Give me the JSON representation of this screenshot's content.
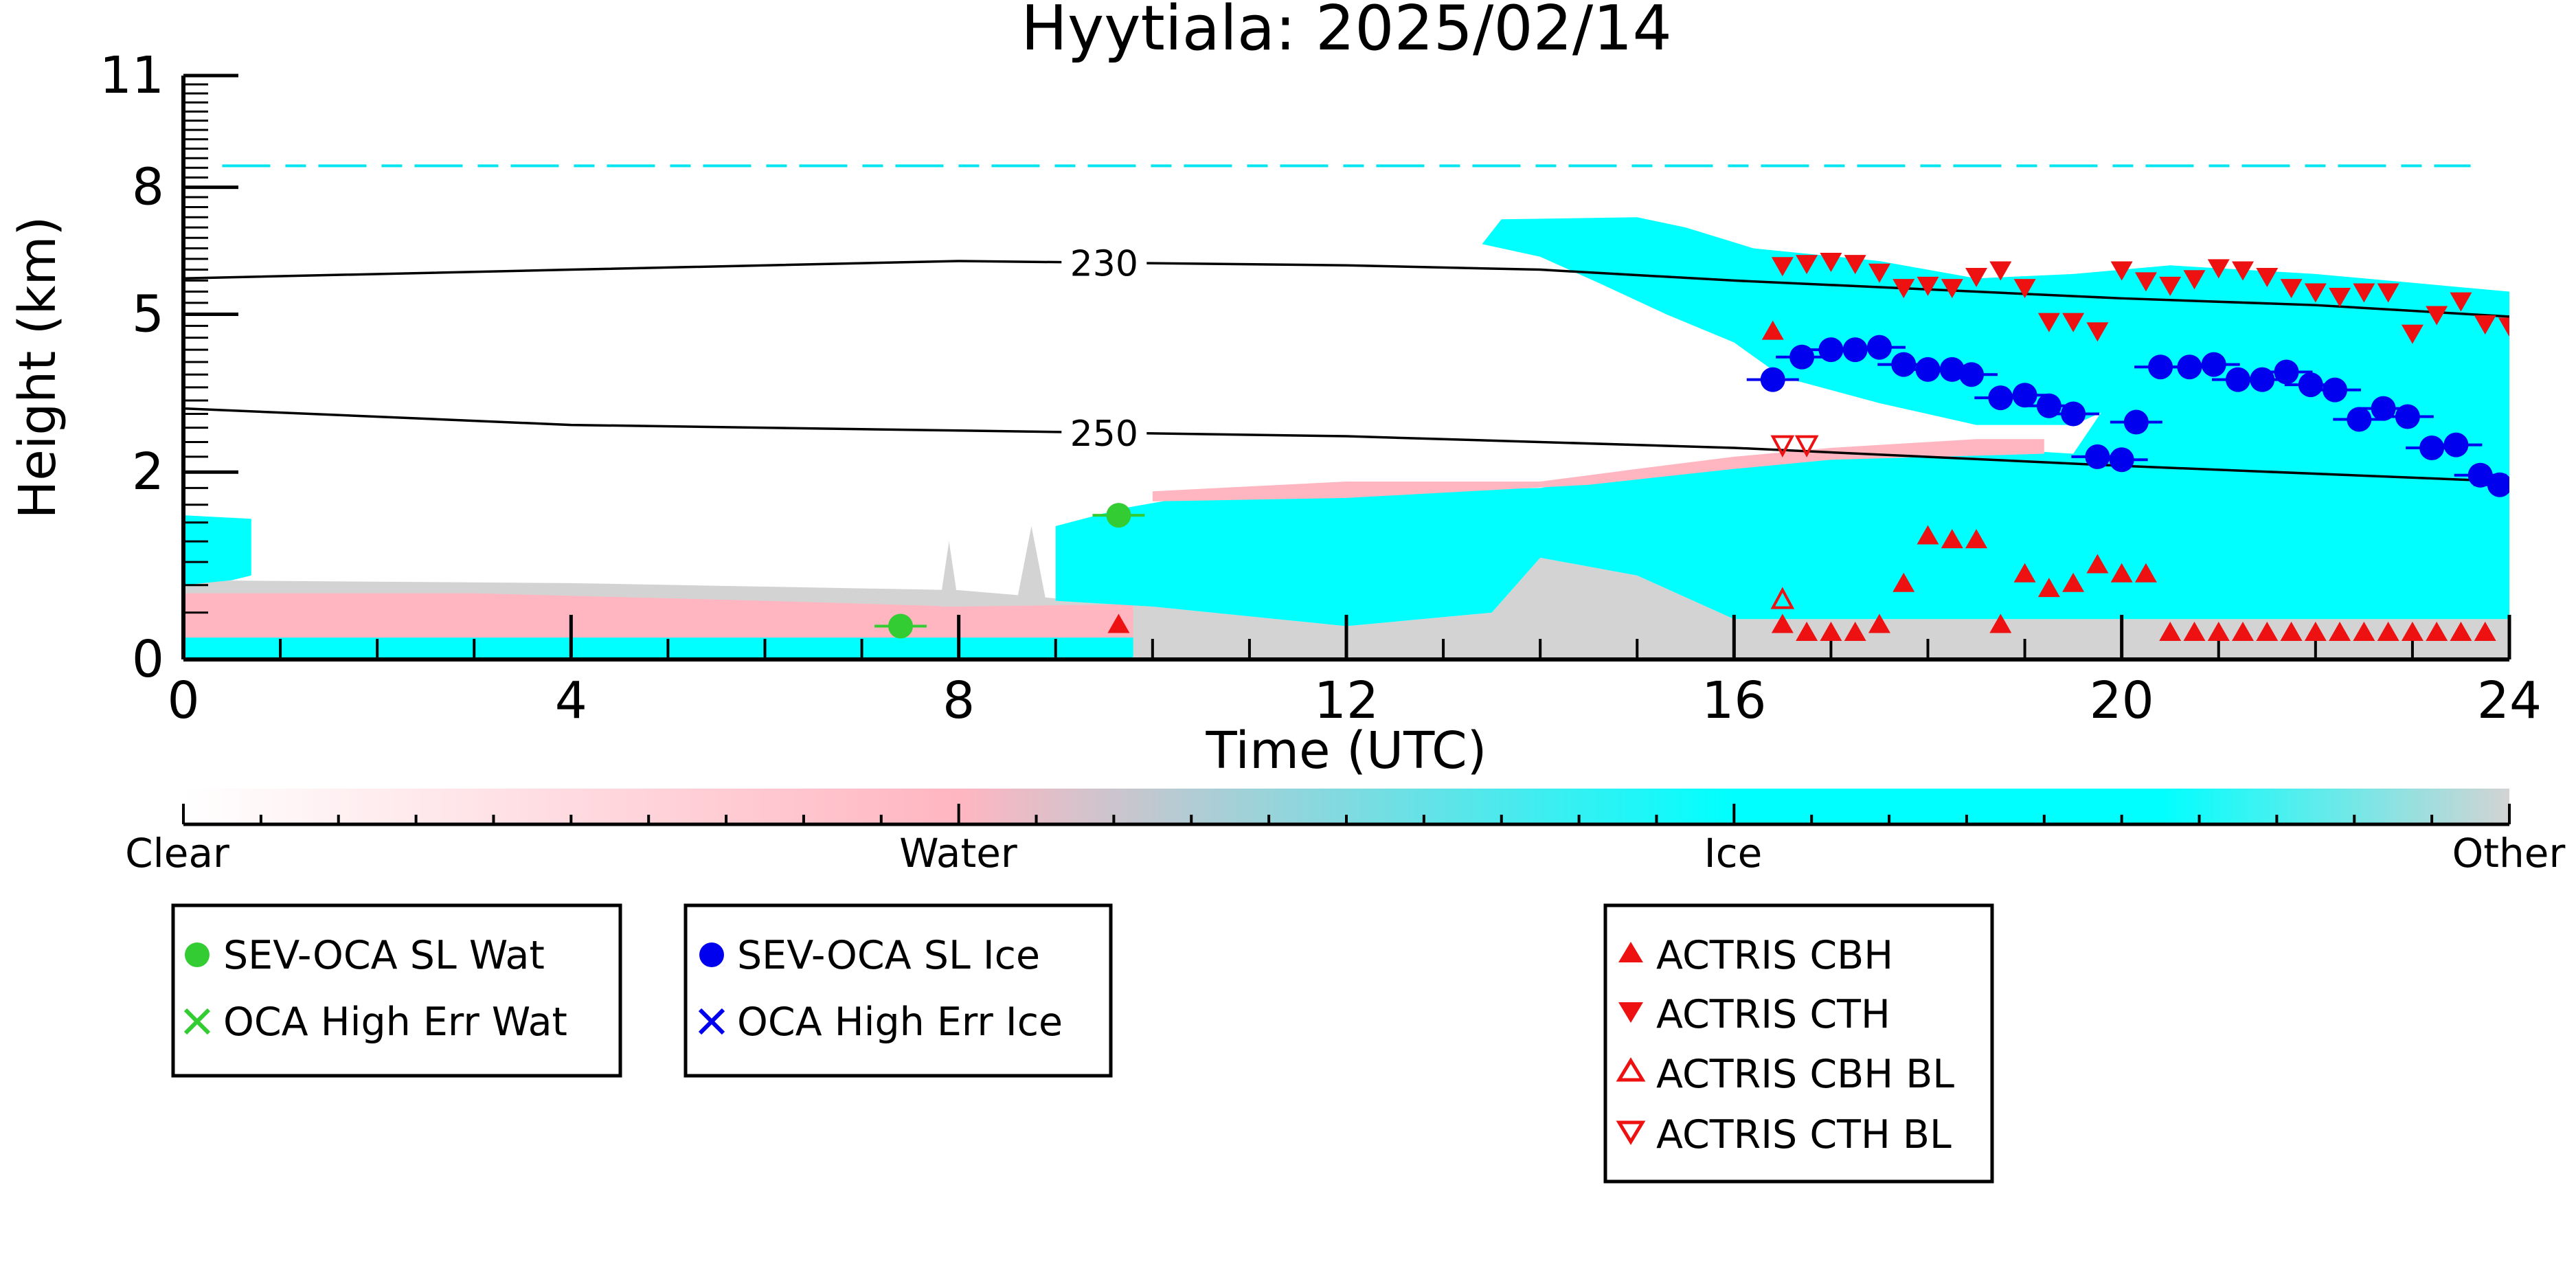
{
  "chart_data": {
    "type": "scatter",
    "title": "Hyytiala: 2025/02/14",
    "xlabel": "Time (UTC)",
    "ylabel": "Height (km)",
    "xlim": [
      0,
      24
    ],
    "ylim": [
      0,
      11
    ],
    "y_axis_scale": "power 2/3 (non-linear)",
    "x_ticks": [
      "0",
      "4",
      "8",
      "12",
      "16",
      "20",
      "24"
    ],
    "y_ticks": [
      {
        "value": 0,
        "label": "0"
      },
      {
        "value": 2,
        "label": "2"
      },
      {
        "value": 5,
        "label": "5"
      },
      {
        "value": 8,
        "label": "8"
      },
      {
        "value": 11,
        "label": "11"
      }
    ],
    "temperature_contours": [
      {
        "label": "230",
        "label_x": 9.5,
        "points": [
          [
            0,
            5.8
          ],
          [
            4,
            6.0
          ],
          [
            8,
            6.2
          ],
          [
            12,
            6.1
          ],
          [
            14,
            6.0
          ],
          [
            16,
            5.75
          ],
          [
            18,
            5.55
          ],
          [
            20,
            5.35
          ],
          [
            22,
            5.2
          ],
          [
            24,
            4.95
          ]
        ]
      },
      {
        "label": "250",
        "label_x": 9.5,
        "points": [
          [
            0,
            3.1
          ],
          [
            4,
            2.8
          ],
          [
            8,
            2.7
          ],
          [
            12,
            2.6
          ],
          [
            16,
            2.4
          ],
          [
            20,
            2.1
          ],
          [
            24,
            1.85
          ]
        ]
      }
    ],
    "classification_colorbar": {
      "labels": [
        "Clear",
        "Water",
        "Ice",
        "Other"
      ],
      "colors": [
        "#ffffff",
        "#ffb6c1",
        "#00ffff",
        "#d3d3d3"
      ]
    },
    "series": [
      {
        "name": "SEV-OCA SL Wat",
        "marker": "circle",
        "color": "#33cc33",
        "points": [
          [
            7.4,
            0.15
          ],
          [
            9.65,
            1.35
          ]
        ]
      },
      {
        "name": "OCA High Err Wat",
        "marker": "x",
        "color": "#33cc33",
        "points": []
      },
      {
        "name": "SEV-OCA SL Ice",
        "marker": "circle",
        "color": "#0000ee",
        "points": [
          [
            16.4,
            3.65
          ],
          [
            16.7,
            4.1
          ],
          [
            17.0,
            4.25
          ],
          [
            17.25,
            4.25
          ],
          [
            17.5,
            4.3
          ],
          [
            17.75,
            3.95
          ],
          [
            18.0,
            3.85
          ],
          [
            18.25,
            3.85
          ],
          [
            18.45,
            3.75
          ],
          [
            18.75,
            3.3
          ],
          [
            19.0,
            3.35
          ],
          [
            19.25,
            3.15
          ],
          [
            19.5,
            3.0
          ],
          [
            19.75,
            2.25
          ],
          [
            20.0,
            2.2
          ],
          [
            20.15,
            2.85
          ],
          [
            20.4,
            3.9
          ],
          [
            20.7,
            3.9
          ],
          [
            20.95,
            3.95
          ],
          [
            21.2,
            3.65
          ],
          [
            21.45,
            3.65
          ],
          [
            21.7,
            3.8
          ],
          [
            21.95,
            3.55
          ],
          [
            22.2,
            3.45
          ],
          [
            22.45,
            2.9
          ],
          [
            22.7,
            3.1
          ],
          [
            22.95,
            2.95
          ],
          [
            23.2,
            2.4
          ],
          [
            23.45,
            2.45
          ],
          [
            23.7,
            1.95
          ],
          [
            23.9,
            1.8
          ]
        ]
      },
      {
        "name": "OCA High Err Ice",
        "marker": "x",
        "color": "#0000ee",
        "points": []
      },
      {
        "name": "ACTRIS CBH",
        "marker": "triangle-up",
        "color": "#ee1111",
        "points": [
          [
            9.65,
            0.15
          ],
          [
            16.4,
            4.6
          ],
          [
            16.5,
            0.15
          ],
          [
            16.75,
            0.1
          ],
          [
            17.0,
            0.1
          ],
          [
            17.25,
            0.1
          ],
          [
            17.5,
            0.15
          ],
          [
            17.75,
            0.5
          ],
          [
            18.0,
            1.05
          ],
          [
            18.25,
            1.0
          ],
          [
            18.5,
            1.0
          ],
          [
            18.75,
            0.15
          ],
          [
            19.0,
            0.6
          ],
          [
            19.25,
            0.45
          ],
          [
            19.5,
            0.5
          ],
          [
            19.75,
            0.7
          ],
          [
            20.0,
            0.6
          ],
          [
            20.25,
            0.6
          ],
          [
            20.5,
            0.1
          ],
          [
            20.75,
            0.1
          ],
          [
            21.0,
            0.1
          ],
          [
            21.25,
            0.1
          ],
          [
            21.5,
            0.1
          ],
          [
            21.75,
            0.1
          ],
          [
            22.0,
            0.1
          ],
          [
            22.25,
            0.1
          ],
          [
            22.5,
            0.1
          ],
          [
            22.75,
            0.1
          ],
          [
            23.0,
            0.1
          ],
          [
            23.25,
            0.1
          ],
          [
            23.5,
            0.1
          ],
          [
            23.75,
            0.1
          ]
        ]
      },
      {
        "name": "ACTRIS CTH",
        "marker": "triangle-down",
        "color": "#ee1111",
        "points": [
          [
            16.5,
            6.1
          ],
          [
            16.75,
            6.15
          ],
          [
            17.0,
            6.2
          ],
          [
            17.25,
            6.15
          ],
          [
            17.5,
            5.95
          ],
          [
            17.75,
            5.6
          ],
          [
            18.0,
            5.65
          ],
          [
            18.25,
            5.6
          ],
          [
            18.5,
            5.85
          ],
          [
            18.75,
            6.0
          ],
          [
            19.0,
            5.6
          ],
          [
            19.25,
            4.85
          ],
          [
            19.5,
            4.85
          ],
          [
            19.75,
            4.65
          ],
          [
            20.0,
            6.0
          ],
          [
            20.25,
            5.75
          ],
          [
            20.5,
            5.65
          ],
          [
            20.75,
            5.8
          ],
          [
            21.0,
            6.05
          ],
          [
            21.25,
            6.0
          ],
          [
            21.5,
            5.85
          ],
          [
            21.75,
            5.6
          ],
          [
            22.0,
            5.5
          ],
          [
            22.25,
            5.4
          ],
          [
            22.5,
            5.5
          ],
          [
            22.75,
            5.5
          ],
          [
            23.0,
            4.6
          ],
          [
            23.25,
            5.0
          ],
          [
            23.5,
            5.3
          ],
          [
            23.75,
            4.8
          ],
          [
            24.0,
            4.75
          ]
        ]
      },
      {
        "name": "ACTRIS CBH BL",
        "marker": "triangle-up-open",
        "color": "#ee1111",
        "points": [
          [
            16.5,
            0.35
          ]
        ]
      },
      {
        "name": "ACTRIS CTH BL",
        "marker": "triangle-down-open",
        "color": "#ee1111",
        "points": [
          [
            16.5,
            2.45
          ],
          [
            16.75,
            2.45
          ]
        ]
      }
    ],
    "legend": {
      "placement": "bottom",
      "groups": [
        [
          "SEV-OCA SL Wat",
          "OCA High Err Wat"
        ],
        [
          "SEV-OCA SL Ice",
          "OCA High Err Ice"
        ],
        [
          "ACTRIS CBH",
          "ACTRIS CTH",
          "ACTRIS CBH BL",
          "ACTRIS CTH BL"
        ]
      ]
    }
  }
}
